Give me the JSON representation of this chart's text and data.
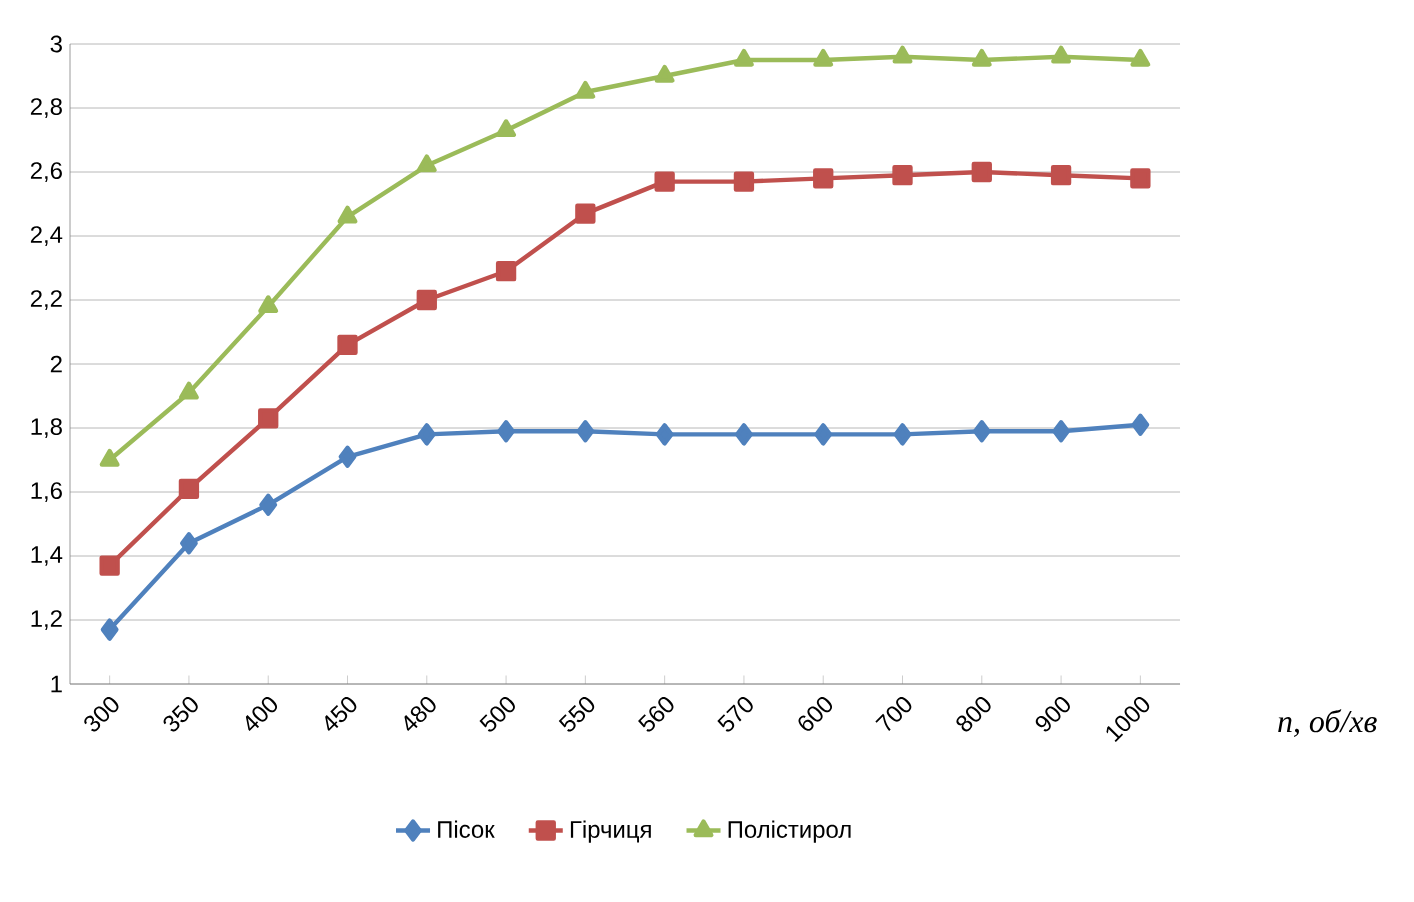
{
  "chart_data": {
    "type": "line",
    "xlabel": "n, об/хв",
    "categories": [
      "300",
      "350",
      "400",
      "450",
      "480",
      "500",
      "550",
      "560",
      "570",
      "600",
      "700",
      "800",
      "900",
      "1000"
    ],
    "ylim": [
      1,
      3
    ],
    "yticks": [
      {
        "value": 1,
        "label": "1"
      },
      {
        "value": 1.2,
        "label": "1,2"
      },
      {
        "value": 1.4,
        "label": "1,4"
      },
      {
        "value": 1.6,
        "label": "1,6"
      },
      {
        "value": 1.8,
        "label": "1,8"
      },
      {
        "value": 2,
        "label": "2"
      },
      {
        "value": 2.2,
        "label": "2,2"
      },
      {
        "value": 2.4,
        "label": "2,4"
      },
      {
        "value": 2.6,
        "label": "2,6"
      },
      {
        "value": 2.8,
        "label": "2,8"
      },
      {
        "value": 3,
        "label": "3"
      }
    ],
    "grid": "y",
    "legend": "bottom",
    "series": [
      {
        "name": "Пісок",
        "color": "#4f81bd",
        "marker": "diamond",
        "values": [
          1.17,
          1.44,
          1.56,
          1.71,
          1.78,
          1.79,
          1.79,
          1.78,
          1.78,
          1.78,
          1.78,
          1.79,
          1.79,
          1.81
        ]
      },
      {
        "name": "Гірчиця",
        "color": "#c0504d",
        "marker": "square",
        "values": [
          1.37,
          1.61,
          1.83,
          2.06,
          2.2,
          2.29,
          2.47,
          2.57,
          2.57,
          2.58,
          2.59,
          2.6,
          2.59,
          2.58
        ]
      },
      {
        "name": "Полістирол",
        "color": "#9bbb59",
        "marker": "triangle",
        "values": [
          1.7,
          1.91,
          2.18,
          2.46,
          2.62,
          2.73,
          2.85,
          2.9,
          2.95,
          2.95,
          2.96,
          2.95,
          2.96,
          2.95
        ]
      }
    ]
  }
}
